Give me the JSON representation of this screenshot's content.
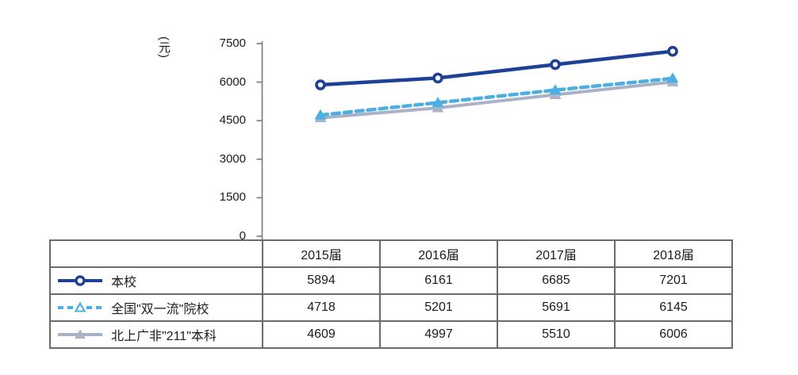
{
  "chart_data": {
    "type": "line",
    "title": "",
    "xlabel": "",
    "ylabel": "(元)",
    "ylim": [
      0,
      7500
    ],
    "yticks": [
      7500,
      6000,
      4500,
      3000,
      1500,
      0
    ],
    "grid": false,
    "legend_position": "table-left-column",
    "categories": [
      "2015届",
      "2016届",
      "2017届",
      "2018届"
    ],
    "series": [
      {
        "name": "本校",
        "values": [
          5894,
          6161,
          6685,
          7201
        ],
        "color": "#1E4096",
        "line_style": "solid",
        "marker": "circle-open"
      },
      {
        "name": "全国\"双一流\"院校",
        "values": [
          4718,
          5201,
          5691,
          6145
        ],
        "color": "#4BAFE1",
        "line_style": "dashed",
        "marker": "triangle"
      },
      {
        "name": "北上广非\"211\"本科",
        "values": [
          4609,
          4997,
          5510,
          6006
        ],
        "color": "#A9B2C6",
        "line_style": "solid",
        "marker": "triangle"
      }
    ]
  },
  "colors": {
    "axis": "#7f7f7f",
    "table_border": "#6b6b6b",
    "text": "#1c1c1c",
    "marker_fill_open": "#ffffff"
  }
}
